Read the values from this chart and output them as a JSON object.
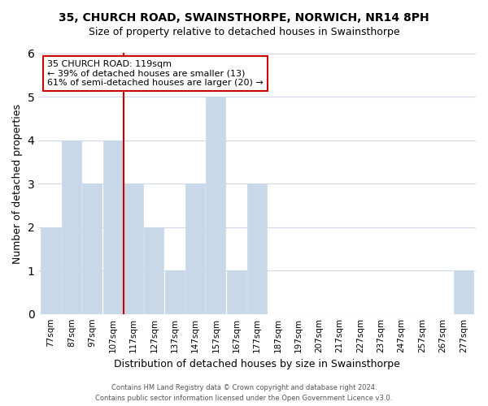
{
  "title": "35, CHURCH ROAD, SWAINSTHORPE, NORWICH, NR14 8PH",
  "subtitle": "Size of property relative to detached houses in Swainsthorpe",
  "xlabel": "Distribution of detached houses by size in Swainsthorpe",
  "ylabel": "Number of detached properties",
  "bin_labels": [
    "77sqm",
    "87sqm",
    "97sqm",
    "107sqm",
    "117sqm",
    "127sqm",
    "137sqm",
    "147sqm",
    "157sqm",
    "167sqm",
    "177sqm",
    "187sqm",
    "197sqm",
    "207sqm",
    "217sqm",
    "227sqm",
    "237sqm",
    "247sqm",
    "257sqm",
    "267sqm",
    "277sqm"
  ],
  "bar_heights": [
    2,
    4,
    3,
    4,
    3,
    2,
    1,
    3,
    5,
    1,
    3,
    0,
    0,
    0,
    0,
    0,
    0,
    0,
    0,
    0,
    1
  ],
  "bar_color": "#c8d8e8",
  "highlight_bar_index": 4,
  "highlight_line_color": "#cc0000",
  "ylim": [
    0,
    6
  ],
  "yticks": [
    0,
    1,
    2,
    3,
    4,
    5,
    6
  ],
  "annotation_title": "35 CHURCH ROAD: 119sqm",
  "annotation_line1": "← 39% of detached houses are smaller (13)",
  "annotation_line2": "61% of semi-detached houses are larger (20) →",
  "annotation_box_color": "#ffffff",
  "annotation_box_edge": "#cc0000",
  "footer_line1": "Contains HM Land Registry data © Crown copyright and database right 2024.",
  "footer_line2": "Contains public sector information licensed under the Open Government Licence v3.0.",
  "background_color": "#ffffff",
  "grid_color": "#d0d8e8"
}
